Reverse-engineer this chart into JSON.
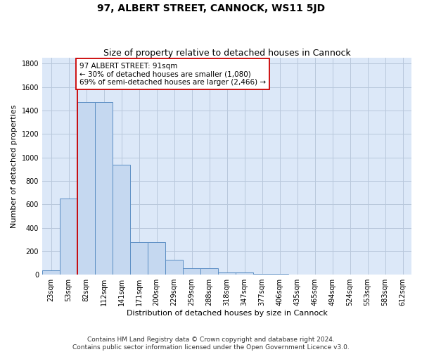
{
  "title": "97, ALBERT STREET, CANNOCK, WS11 5JD",
  "subtitle": "Size of property relative to detached houses in Cannock",
  "xlabel": "Distribution of detached houses by size in Cannock",
  "ylabel": "Number of detached properties",
  "bin_labels": [
    "23sqm",
    "53sqm",
    "82sqm",
    "112sqm",
    "141sqm",
    "171sqm",
    "200sqm",
    "229sqm",
    "259sqm",
    "288sqm",
    "318sqm",
    "347sqm",
    "377sqm",
    "406sqm",
    "435sqm",
    "465sqm",
    "494sqm",
    "524sqm",
    "553sqm",
    "583sqm",
    "612sqm"
  ],
  "bar_heights": [
    35,
    650,
    1470,
    1470,
    940,
    280,
    280,
    130,
    55,
    55,
    20,
    20,
    10,
    10,
    0,
    0,
    0,
    0,
    0,
    0,
    0
  ],
  "bar_color": "#c5d8f0",
  "bar_edge_color": "#5b8ec4",
  "vline_x_index": 2,
  "vline_color": "#cc0000",
  "annotation_text": "97 ALBERT STREET: 91sqm\n← 30% of detached houses are smaller (1,080)\n69% of semi-detached houses are larger (2,466) →",
  "annotation_box_color": "white",
  "annotation_box_edge_color": "#cc0000",
  "ylim": [
    0,
    1850
  ],
  "yticks": [
    0,
    200,
    400,
    600,
    800,
    1000,
    1200,
    1400,
    1600,
    1800
  ],
  "grid_color": "#b8c8dc",
  "background_color": "#dce8f8",
  "footer": "Contains HM Land Registry data © Crown copyright and database right 2024.\nContains public sector information licensed under the Open Government Licence v3.0.",
  "title_fontsize": 10,
  "subtitle_fontsize": 9,
  "xlabel_fontsize": 8,
  "ylabel_fontsize": 8,
  "tick_fontsize": 7,
  "annotation_fontsize": 7.5,
  "footer_fontsize": 6.5
}
